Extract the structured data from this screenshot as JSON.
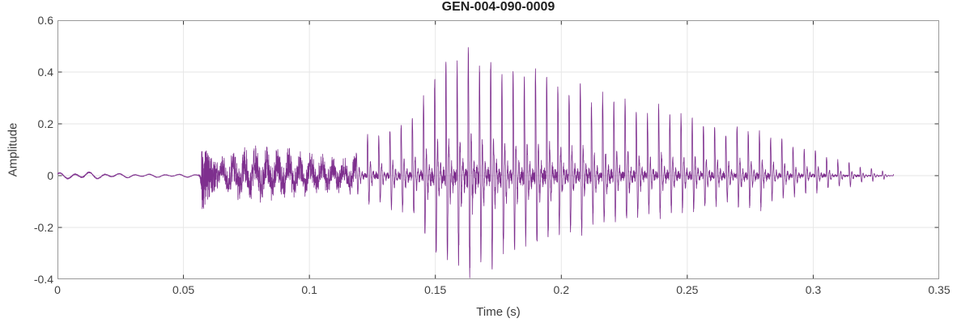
{
  "figure": {
    "background": "#ffffff"
  },
  "chart_data": {
    "type": "line",
    "title": "GEN-004-090-0009",
    "xlabel": "Time (s)",
    "ylabel": "Amplitude",
    "xlim": [
      0,
      0.35
    ],
    "ylim": [
      -0.4,
      0.6
    ],
    "xticks": [
      0,
      0.05,
      0.1,
      0.15,
      0.2,
      0.25,
      0.3,
      0.35
    ],
    "xtick_labels": [
      "0",
      "0.05",
      "0.1",
      "0.15",
      "0.2",
      "0.25",
      "0.3",
      "0.35"
    ],
    "yticks": [
      -0.4,
      -0.2,
      0,
      0.2,
      0.4,
      0.6
    ],
    "ytick_labels": [
      "-0.4",
      "-0.2",
      "0",
      "0.2",
      "0.4",
      "0.6"
    ],
    "grid": true,
    "legend": "none",
    "line_color": "#7E2F8E",
    "grid_color": "#E6E6E6",
    "axis_color": "#999999",
    "tick_color": "#333333",
    "tick_label_color": "#404040",
    "label_color": "#3D3D3D",
    "title_color": "#1F1F1F",
    "waveform": {
      "description": "speech waveform amplitude vs time",
      "duration_s": 0.332,
      "sample_rate_hz": 20000,
      "f0_hz": 225,
      "peak_amplitude": 0.49,
      "min_amplitude": -0.39,
      "peak_time_s": 0.164,
      "segments": {
        "ambient_end_s": 0.0572,
        "burst_end_s": 0.0635,
        "noisy_end_s": 0.1185
      },
      "envelope": [
        [
          0.0,
          0.01,
          -0.01
        ],
        [
          0.004,
          0.013,
          -0.013
        ],
        [
          0.012,
          0.014,
          -0.014
        ],
        [
          0.022,
          0.009,
          -0.009
        ],
        [
          0.032,
          0.007,
          -0.007
        ],
        [
          0.045,
          0.006,
          -0.006
        ],
        [
          0.056,
          0.006,
          -0.006
        ],
        [
          0.0575,
          0.115,
          -0.15
        ],
        [
          0.0605,
          0.08,
          -0.09
        ],
        [
          0.063,
          0.05,
          -0.05
        ],
        [
          0.068,
          0.09,
          -0.08
        ],
        [
          0.075,
          0.11,
          -0.095
        ],
        [
          0.085,
          0.105,
          -0.095
        ],
        [
          0.095,
          0.095,
          -0.085
        ],
        [
          0.105,
          0.08,
          -0.07
        ],
        [
          0.112,
          0.06,
          -0.06
        ],
        [
          0.118,
          0.085,
          -0.075
        ],
        [
          0.122,
          0.13,
          -0.095
        ],
        [
          0.127,
          0.16,
          -0.11
        ],
        [
          0.132,
          0.165,
          -0.12
        ],
        [
          0.137,
          0.2,
          -0.14
        ],
        [
          0.142,
          0.265,
          -0.18
        ],
        [
          0.147,
          0.31,
          -0.24
        ],
        [
          0.151,
          0.42,
          -0.33
        ],
        [
          0.156,
          0.45,
          -0.36
        ],
        [
          0.16,
          0.46,
          -0.38
        ],
        [
          0.164,
          0.49,
          -0.39
        ],
        [
          0.169,
          0.45,
          -0.36
        ],
        [
          0.174,
          0.405,
          -0.34
        ],
        [
          0.179,
          0.415,
          -0.32
        ],
        [
          0.184,
          0.405,
          -0.305
        ],
        [
          0.19,
          0.415,
          -0.285
        ],
        [
          0.195,
          0.385,
          -0.27
        ],
        [
          0.2,
          0.36,
          -0.235
        ],
        [
          0.21,
          0.31,
          -0.21
        ],
        [
          0.22,
          0.3,
          -0.19
        ],
        [
          0.23,
          0.26,
          -0.17
        ],
        [
          0.238,
          0.26,
          -0.155
        ],
        [
          0.25,
          0.21,
          -0.13
        ],
        [
          0.26,
          0.19,
          -0.12
        ],
        [
          0.27,
          0.18,
          -0.115
        ],
        [
          0.278,
          0.15,
          -0.12
        ],
        [
          0.285,
          0.165,
          -0.1
        ],
        [
          0.292,
          0.12,
          -0.09
        ],
        [
          0.3,
          0.1,
          -0.065
        ],
        [
          0.308,
          0.07,
          -0.05
        ],
        [
          0.315,
          0.045,
          -0.038
        ],
        [
          0.322,
          0.03,
          -0.026
        ],
        [
          0.328,
          0.018,
          -0.015
        ],
        [
          0.332,
          0.006,
          -0.006
        ]
      ]
    }
  }
}
